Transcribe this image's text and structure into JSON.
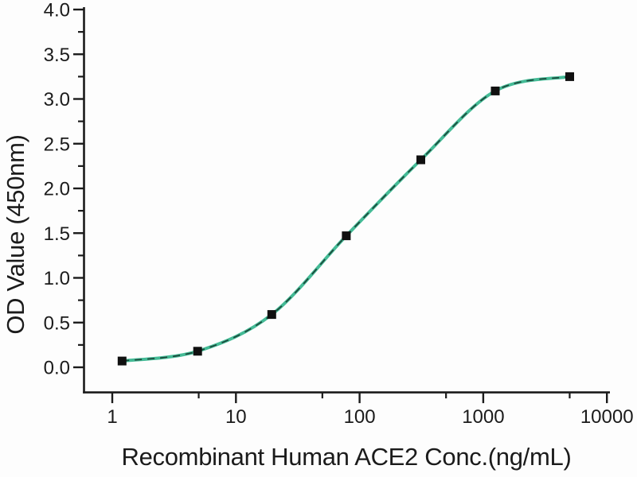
{
  "chart_data": {
    "type": "scatter",
    "title": "",
    "xlabel": "Recombinant Human ACE2 Conc.(ng/mL)",
    "ylabel": "OD Value (450nm)",
    "x_scale": "log10",
    "xlim": [
      1,
      10000
    ],
    "ylim": [
      0.0,
      4.0
    ],
    "grid": "off",
    "legend": "none",
    "series": [
      {
        "name": "Recombinant Human ACE2",
        "x": [
          1.2,
          4.9,
          19.5,
          78.1,
          312.5,
          1250,
          5000
        ],
        "y": [
          0.07,
          0.18,
          0.59,
          1.47,
          2.32,
          3.09,
          3.25
        ],
        "marker": "black-square",
        "fit_curve": "4PL sigmoid through points"
      }
    ],
    "x_major_ticks": [
      {
        "value": 1,
        "label": "1"
      },
      {
        "value": 10,
        "label": "10"
      },
      {
        "value": 100,
        "label": "100"
      },
      {
        "value": 1000,
        "label": "1000"
      },
      {
        "value": 10000,
        "label": "10000"
      }
    ],
    "x_minor_ticks": [
      5,
      50,
      500,
      5000
    ],
    "y_major_ticks": [
      {
        "value": 0.0,
        "label": "0.0"
      },
      {
        "value": 0.5,
        "label": "0.5"
      },
      {
        "value": 1.0,
        "label": "1.0"
      },
      {
        "value": 1.5,
        "label": "1.5"
      },
      {
        "value": 2.0,
        "label": "2.0"
      },
      {
        "value": 2.5,
        "label": "2.5"
      },
      {
        "value": 3.0,
        "label": "3.0"
      },
      {
        "value": 3.5,
        "label": "3.5"
      },
      {
        "value": 4.0,
        "label": "4.0"
      }
    ],
    "y_minor_ticks": [
      0.25,
      0.75,
      1.25,
      1.75,
      2.25,
      2.75,
      3.25,
      3.75
    ],
    "colors": {
      "axis": "#1b1b1b",
      "marker": "#101010",
      "curve": "#44bb96",
      "curve_dash": "#15352b",
      "background": "#fdfdfd"
    }
  }
}
